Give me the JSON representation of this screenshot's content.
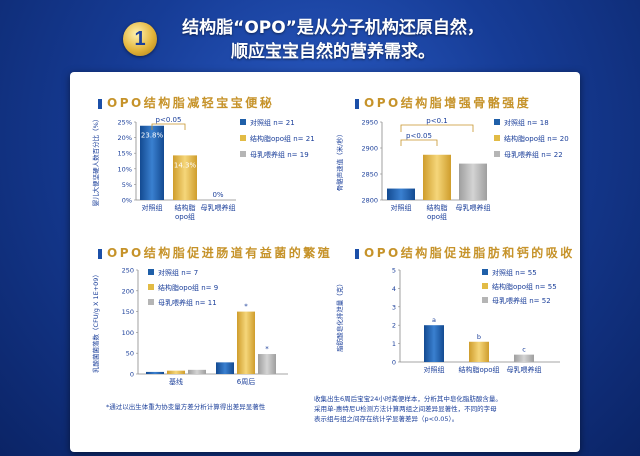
{
  "header": {
    "step_number": "1",
    "line1": "结构脂“OPO”是从分子机构还原自然，",
    "line2": "顺应宝宝自然的营养需求。"
  },
  "colors": {
    "control": "#1f5fa8",
    "opo": "#e2bb45",
    "breast": "#b5b5b5",
    "title_gold": "#c6932a",
    "text_blue": "#1b3f9a"
  },
  "panels": {
    "p1": {
      "title": "OPO结构脂减轻宝宝便秘"
    },
    "p2": {
      "title": "OPO结构脂增强骨骼强度"
    },
    "p3": {
      "title": "OPO结构脂促进肠道有益菌的繁殖"
    },
    "p4": {
      "title": "OPO结构脂促进脂肪和钙的吸收"
    }
  },
  "footnotes": {
    "p3": "*通过以出生体重为协变量方差分析计算得出差异显著性",
    "p4_line1": "收集出生6周后宝宝24小时粪便样本，分析其中皂化脂肪酸含量。",
    "p4_line2": "采用单-惠特尼U检测方法计算两组之间差异显著性，不同的字母",
    "p4_line3": "表示组与组之间存在统计学显著差异（p<0.05）。"
  },
  "chart_data": [
    {
      "type": "bar",
      "ylabel": "婴儿大便坚硬人数百分比（%）",
      "categories": [
        "对照组",
        "结构脂opo组",
        "母乳喂养组"
      ],
      "values": [
        23.8,
        14.3,
        0
      ],
      "data_labels": [
        "23.8%",
        "14.3%",
        "0%"
      ],
      "ylim": [
        0,
        25
      ],
      "yticks": [
        "0%",
        "5%",
        "10%",
        "15%",
        "20%",
        "25%"
      ],
      "annotation": "p<0.05",
      "legend": [
        "对照组 n= 21",
        "结构脂opo组 n= 21",
        "母乳喂养组 n= 19"
      ],
      "legend_position": "right"
    },
    {
      "type": "bar",
      "ylabel": "骨骼声速值（米/秒）",
      "categories": [
        "对照组",
        "结构脂opo组",
        "母乳喂养组"
      ],
      "values": [
        2822,
        2887,
        2870
      ],
      "ylim": [
        2800,
        2950
      ],
      "yticks": [
        "2800",
        "2850",
        "2900",
        "2950"
      ],
      "annotations": [
        "p<0.1",
        "p<0.05"
      ],
      "legend": [
        "对照组 n= 18",
        "结构脂opo组 n= 20",
        "母乳喂养组 n= 22"
      ],
      "legend_position": "right"
    },
    {
      "type": "bar",
      "ylabel": "乳酸菌菌落数（CFU/g X 1E+09）",
      "categories": [
        "基线",
        "6周后"
      ],
      "series": [
        {
          "name": "对照组 n= 7",
          "values": [
            5,
            28
          ]
        },
        {
          "name": "结构脂opo组 n= 9",
          "values": [
            8,
            150
          ]
        },
        {
          "name": "母乳喂养组 n= 11",
          "values": [
            10,
            48
          ]
        }
      ],
      "ylim": [
        0,
        250
      ],
      "yticks": [
        "0",
        "50",
        "100",
        "150",
        "200",
        "250"
      ],
      "markers": [
        "*",
        "*"
      ],
      "legend_position": "top-left"
    },
    {
      "type": "bar",
      "ylabel": "脂肪酸皂化排泄量（克）",
      "categories": [
        "对照组",
        "结构脂opo组",
        "母乳喂养组"
      ],
      "values": [
        2.0,
        1.1,
        0.4
      ],
      "letters": [
        "a",
        "b",
        "c"
      ],
      "ylim": [
        0,
        5
      ],
      "yticks": [
        "0",
        "1",
        "2",
        "3",
        "4",
        "5"
      ],
      "legend": [
        "对照组 n= 55",
        "结构脂opo组 n= 55",
        "母乳喂养组 n= 52"
      ],
      "legend_position": "top-right"
    }
  ]
}
